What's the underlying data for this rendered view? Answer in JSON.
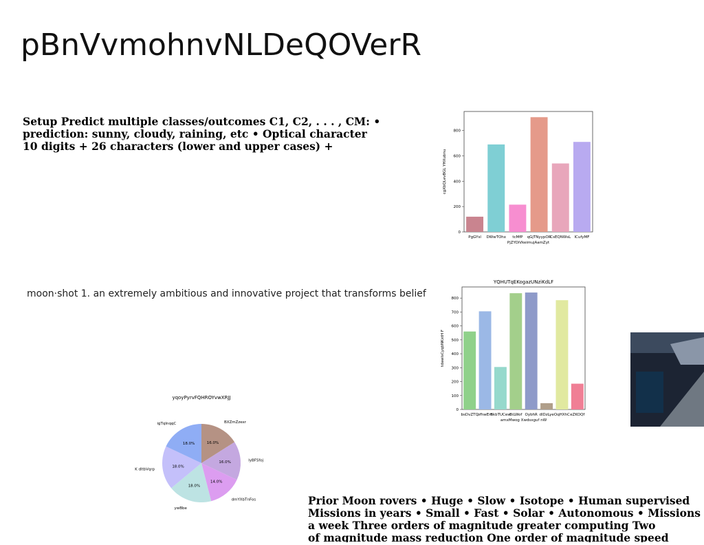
{
  "title": "pBnVvmohnvNLDeQOVerR",
  "setup_text": [
    "Setup Predict multiple classes/outcomes C1, C2, . . . , CM: •",
    "prediction: sunny, cloudy, raining, etc • Optical character",
    "10 digits + 26 characters (lower and upper cases) +"
  ],
  "moonshot_text": "moon·shot 1. an extremely ambitious and innovative project that transforms belief",
  "rovers_text": [
    "Prior Moon rovers • Huge • Slow • Isotope • Human supervised",
    "Missions in years • Small • Fast • Solar • Autonomous • Missions",
    "a week Three orders of magnitude greater computing Two",
    "of magnitude mass reduction One order of magnitude speed"
  ],
  "chart_data": [
    {
      "type": "bar",
      "ylabel": "cgXbQLevBGL YHXubnu",
      "xlabel": "PjZYOiVkeimujAamZyt",
      "categories": [
        "PgGYsl",
        "DWwTOhx",
        "tcMfP",
        "qGjTNyypOR",
        "CsEQNWsL",
        "ICufyMF"
      ],
      "values": [
        120,
        690,
        215,
        905,
        540,
        710
      ],
      "colors": [
        "#c9848f",
        "#7fcfd4",
        "#f78ed0",
        "#e59a8a",
        "#e8a6bb",
        "#b8aaf0"
      ],
      "ylim": [
        0,
        950
      ],
      "yticks": [
        0,
        200,
        400,
        600,
        800
      ]
    },
    {
      "type": "bar",
      "title": "YQHUTqEKogazUNziKdLF",
      "ylabel": "tdawlsCyqbNKxtH F",
      "xlabel": "amxMwog Xwdsxguf nW",
      "categories": [
        "bsDvZTQ",
        "ofhwEm",
        "BkbTUCew",
        "BiLWof",
        "OybhR",
        "dIDzLye",
        "OqHXhC",
        "eZKOQf"
      ],
      "values": [
        560,
        705,
        305,
        835,
        840,
        45,
        785,
        185
      ],
      "colors": [
        "#8fd18a",
        "#9bb8e6",
        "#96d9cc",
        "#a3cf8b",
        "#8e9ac9",
        "#b09f8a",
        "#e1e9a0",
        "#f07f95"
      ],
      "ylim": [
        0,
        880
      ],
      "yticks": [
        0,
        100,
        200,
        300,
        400,
        500,
        600,
        700,
        800
      ]
    },
    {
      "type": "pie",
      "title": "yqoyPyrvFQHROYvwXRJJ",
      "categories": [
        "BXZmZzexr",
        "lyBFSfoj",
        "dmYXbTnFos",
        "ywBbe",
        "K dltbVqrp",
        "igTqInqqC"
      ],
      "values": [
        16,
        16,
        14,
        18,
        18,
        18
      ],
      "value_labels": [
        "16.0%",
        "16.0%",
        "14.0%",
        "18.0%",
        "18.0%",
        "18.0%"
      ],
      "colors": [
        "#b59284",
        "#c4a8e0",
        "#dc9df0",
        "#bde3e3",
        "#c4c0fa",
        "#8fadf5"
      ]
    }
  ]
}
